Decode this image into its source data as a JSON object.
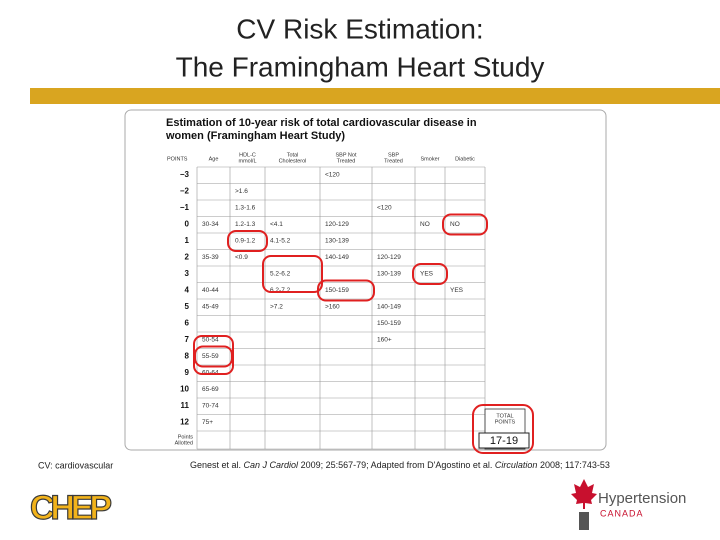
{
  "header": {
    "title_lines": [
      "CV Risk Estimation:",
      "The Framingham Heart Study"
    ]
  },
  "table": {
    "title_lines": [
      "Estimation of 10-year risk of total cardiovascular disease in",
      "women (Framingham Heart Study)"
    ],
    "headers": [
      [
        "POINTS"
      ],
      [
        "Age"
      ],
      [
        "HDL-C",
        "mmol/L"
      ],
      [
        "Total",
        "Cholesterol"
      ],
      [
        "SBP Not",
        "Treated"
      ],
      [
        "SBP",
        "Treated"
      ],
      [
        "Smoker"
      ],
      [
        "Diabetic"
      ]
    ],
    "rows": [
      [
        "−3",
        null,
        null,
        null,
        "<120",
        null,
        null,
        null
      ],
      [
        "−2",
        null,
        ">1.6",
        null,
        null,
        null,
        null,
        null
      ],
      [
        "−1",
        null,
        "1.3-1.6",
        null,
        null,
        "<120",
        null,
        null
      ],
      [
        "0",
        "30-34",
        "1.2-1.3",
        "<4.1",
        "120-129",
        null,
        "NO",
        "NO"
      ],
      [
        "1",
        null,
        "0.9-1.2",
        "4.1-5.2",
        "130-139",
        null,
        null,
        null
      ],
      [
        "2",
        "35-39",
        "<0.9",
        null,
        "140-149",
        "120-129",
        null,
        null
      ],
      [
        "3",
        null,
        null,
        "5.2-6.2",
        null,
        "130-139",
        "YES",
        null
      ],
      [
        "4",
        "40-44",
        null,
        "6.2-7.2",
        "150-159",
        null,
        null,
        "YES"
      ],
      [
        "5",
        "45-49",
        null,
        ">7.2",
        ">160",
        "140-149",
        null,
        null
      ],
      [
        "6",
        null,
        null,
        null,
        null,
        "150-159",
        null,
        null
      ],
      [
        "7",
        "50-54",
        null,
        null,
        null,
        "160+",
        null,
        null
      ],
      [
        "8",
        "55-59",
        null,
        null,
        null,
        null,
        null,
        null
      ],
      [
        "9",
        "60-64",
        null,
        null,
        null,
        null,
        null,
        null
      ],
      [
        "10",
        "65-69",
        null,
        null,
        null,
        null,
        null,
        null
      ],
      [
        "11",
        "70-74",
        null,
        null,
        null,
        null,
        null,
        null
      ],
      [
        "12",
        "75+",
        null,
        null,
        null,
        null,
        null,
        null
      ]
    ],
    "allotted_label": [
      "Points",
      "Allotted"
    ],
    "total_label": [
      "TOTAL",
      "POINTS"
    ],
    "total_value": "17-19"
  },
  "footer": {
    "abbreviation": "CV: cardiovascular",
    "citation_parts": [
      "Genest et al. ",
      "Can J Cardiol",
      " 2009; 25:567-79; Adapted from D'Agostino et al. ",
      "Circulation",
      " 2008; 117:743-53"
    ],
    "logo_left": "CHEP",
    "logo_right": [
      "Hypertension",
      "CANADA"
    ]
  }
}
